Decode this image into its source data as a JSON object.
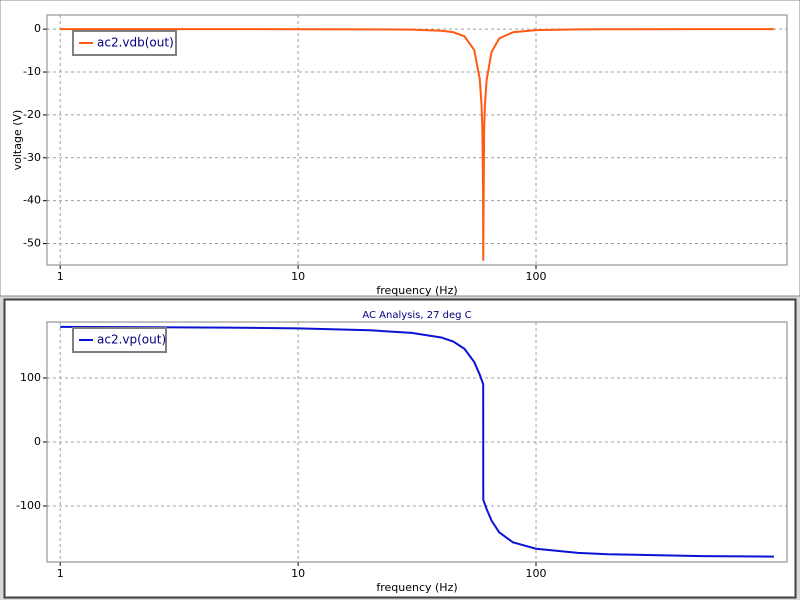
{
  "chart_data": [
    {
      "type": "line",
      "x_scale": "log",
      "y_label": "voltage (V)",
      "x_label": "frequency (Hz)",
      "x": [
        1,
        2,
        5,
        10,
        20,
        30,
        40,
        45,
        50,
        55,
        58,
        59,
        59.5,
        59.9,
        60,
        60.5,
        61,
        62,
        65,
        70,
        80,
        100,
        150,
        200,
        500,
        1000
      ],
      "series": [
        {
          "name": "ac2.vdb(out)",
          "color": "#ff5a14",
          "values": [
            0,
            0,
            0,
            -0.01,
            -0.04,
            -0.12,
            -0.37,
            -0.73,
            -1.66,
            -4.86,
            -11.6,
            -17.5,
            -23.5,
            -37.5,
            -54,
            -23.6,
            -17.6,
            -11.9,
            -5.35,
            -2.18,
            -0.73,
            -0.23,
            -0.06,
            -0.03,
            0,
            0
          ]
        }
      ],
      "xlim": [
        0.88,
        1135
      ],
      "ylim": [
        -55,
        3.3
      ],
      "xticks": [
        1,
        10,
        100
      ],
      "yticks": [
        0,
        -10,
        -20,
        -30,
        -40,
        -50
      ],
      "grid": true,
      "legend": "upper left"
    },
    {
      "type": "line",
      "x_scale": "log",
      "title": "AC Analysis, 27 deg C",
      "x_label": "frequency (Hz)",
      "x": [
        1,
        2,
        5,
        10,
        20,
        30,
        40,
        45,
        50,
        55,
        58,
        59,
        59.5,
        59.98,
        60.02,
        60.5,
        61,
        62,
        65,
        70,
        80,
        100,
        150,
        200,
        500,
        1000
      ],
      "series": [
        {
          "name": "ac2.vp(out)",
          "color": "#0a14d2",
          "values": [
            179.8,
            179.5,
            178.8,
            177.5,
            174.6,
            170.5,
            163.3,
            156.8,
            145.7,
            124.9,
            105.2,
            97.7,
            93.8,
            90.2,
            -90.2,
            -93.8,
            -97.5,
            -104.7,
            -122.7,
            -141.1,
            -156.8,
            -166.8,
            -173.2,
            -175.3,
            -178.3,
            -179.1
          ]
        }
      ],
      "xlim": [
        0.88,
        1135
      ],
      "ylim": [
        -187.5,
        187.5
      ],
      "xticks": [
        1,
        10,
        100
      ],
      "yticks": [
        -100,
        0,
        100
      ],
      "grid": true,
      "legend": "upper left"
    }
  ]
}
